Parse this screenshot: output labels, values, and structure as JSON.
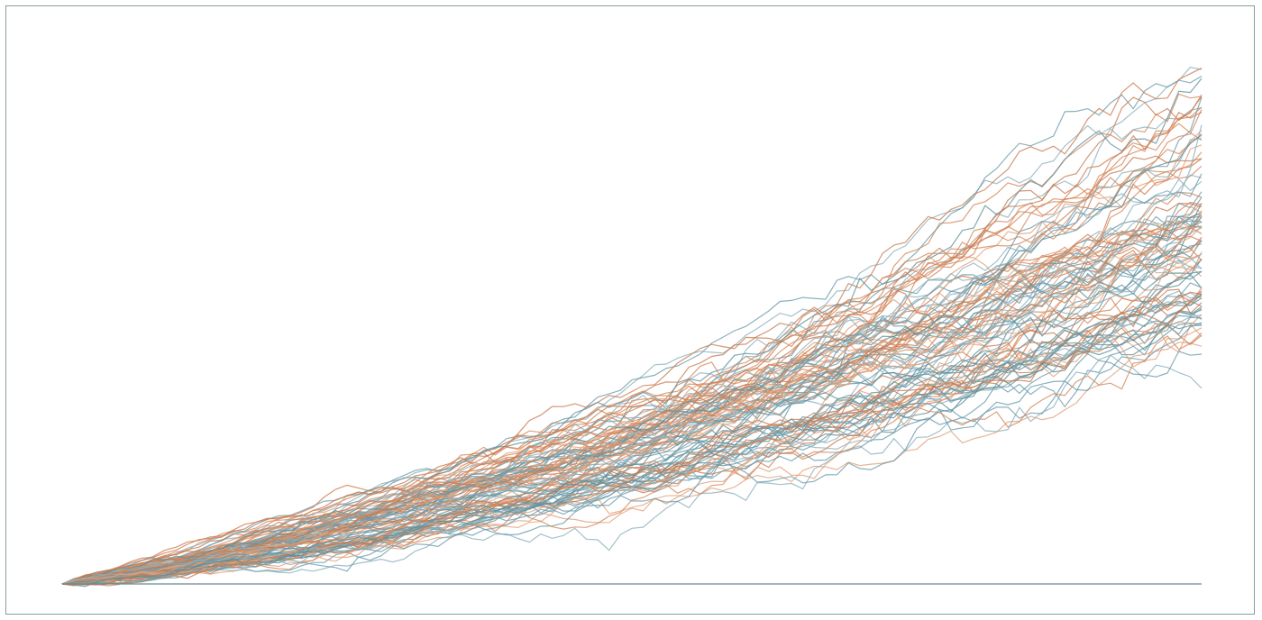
{
  "chart_data": {
    "type": "line",
    "title": "",
    "xlabel": "",
    "ylabel": "",
    "grid": false,
    "legend": "none",
    "xlim": [
      0,
      100
    ],
    "ylim": [
      0,
      100
    ],
    "series_count": 100,
    "points_per_series": 100,
    "series_colors": [
      "#6a9aaa",
      "#d4865a",
      "#5f8f9a",
      "#c97a50",
      "#8ab0bc",
      "#e0a07a"
    ],
    "baseline": {
      "y": 0,
      "color": "#6a8a8f"
    },
    "envelope": {
      "x": [
        0,
        10,
        20,
        30,
        40,
        50,
        60,
        70,
        80,
        90,
        100
      ],
      "min": [
        0,
        0.5,
        1.5,
        3,
        5,
        7.5,
        11,
        15,
        19,
        24,
        28.5
      ],
      "median": [
        0,
        3,
        7.5,
        12.5,
        18,
        24,
        31,
        38,
        45.5,
        53,
        61
      ],
      "max": [
        0,
        6,
        13,
        20,
        28,
        37,
        46,
        58,
        72,
        87,
        101.5
      ]
    }
  }
}
